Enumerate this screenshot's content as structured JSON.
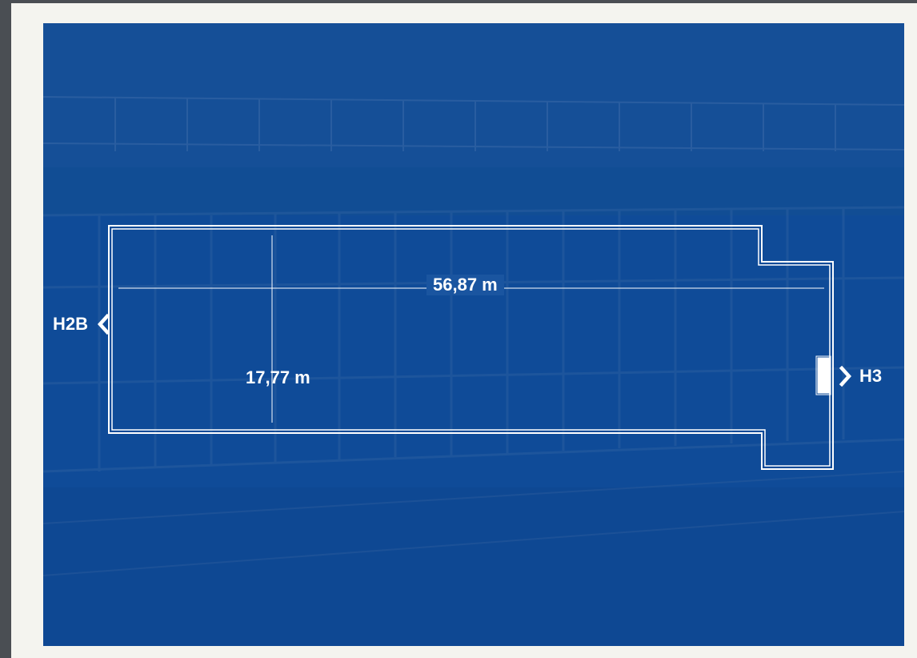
{
  "diagram": {
    "width_label": "56,87 m",
    "depth_label": "17,77 m",
    "exit_left_label": "H2B",
    "exit_right_label": "H3",
    "icons": {
      "left_exit": "chevron-left-icon",
      "right_exit": "chevron-right-icon"
    },
    "colors": {
      "panel": "#0f4b98",
      "frame": "#f4f4ef",
      "lines": "#ffffff"
    }
  }
}
